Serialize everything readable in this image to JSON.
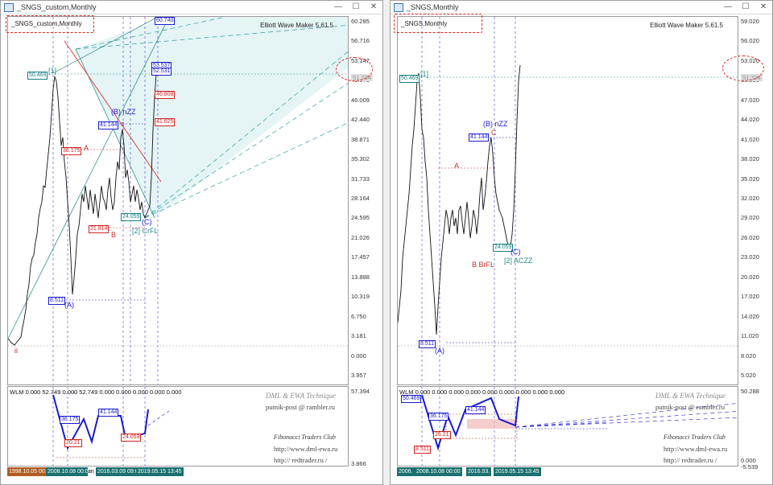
{
  "window_left": {
    "title": "_SNGS_custom,Monthly",
    "chart_label": "_SNGS_custom,Monthly",
    "indicator": "Elliott Wave Maker 5.61.5",
    "current_price": "51.734",
    "axis_ticks": [
      "60.285",
      "56.716",
      "53.147",
      "49.578",
      "46.009",
      "42.440",
      "38.871",
      "35.302",
      "31.733",
      "28.164",
      "24.595",
      "21.026",
      "17.457",
      "13.888",
      "10.319",
      "6.750",
      "3.181",
      "0.000",
      "3.957"
    ],
    "sub_axis_ticks": [
      "57.394",
      "3.866"
    ],
    "price_labels": {
      "p50469": "50.469",
      "p36175": "36.175",
      "p41144": "41.144",
      "p21814": "21.814",
      "p24059": "24.059",
      "p8511": "8.511",
      "p46808": "46.808",
      "p41625": "41.625",
      "p53": "53.537",
      "p52": "52.531",
      "p60740": "60.740"
    },
    "waves": {
      "w1": "[1]",
      "wA": "(A)",
      "wB": "(B) nZZ",
      "wC": "(C)",
      "w2": "[2] CrFL",
      "a": "A",
      "b": "B",
      "c": "c",
      "ii": "ii"
    },
    "sub_title": "WLM 0.000 52.749 0.000 52.749 0.000 0.000 0.000 0.000 0.000",
    "sub_labels": {
      "s36175": "36.175",
      "s41144": "41.144",
      "s20": "20.21",
      "s24059": "24.059"
    },
    "tech_title": "DML & EWA Technique",
    "tech_email": "putnik-post @ rambler.ru",
    "club": "Fibonacci   Traders   Club",
    "url1": "http://www.dml-ewa.ru",
    "url2": "http://  redtrader.ru  /",
    "dates": [
      "1998.10.05 00:00",
      "2008.10.08 00:00",
      "2016.03.09 09:00",
      "2019.05.15 13:45"
    ],
    "date_tail": "an"
  },
  "window_right": {
    "title": "_SNGS,Monthly",
    "chart_label": "_SNGS,Monthly",
    "indicator": "Elliott Wave Maker 5.61.5",
    "current_price": "51.734",
    "axis_ticks": [
      "59.020",
      "56.020",
      "53.020",
      "50.020",
      "47.020",
      "44.020",
      "41.020",
      "38.020",
      "35.020",
      "32.020",
      "29.020",
      "26.020",
      "23.020",
      "20.020",
      "17.020",
      "14.020",
      "11.020",
      "8.020",
      "5.020"
    ],
    "sub_axis_ticks": [
      "50.288",
      "0.000",
      "-5.539"
    ],
    "price_labels": {
      "p50469": "50.469",
      "p41144": "41.144",
      "p24059": "24.059",
      "p8511": "8.511"
    },
    "waves": {
      "w1": "[1]",
      "wA": "(A)",
      "wB": "(B) nZZ",
      "wC": "(C)",
      "w2": "[2] ACZZ",
      "a": "A",
      "b": "B BrFL",
      "c": "C"
    },
    "sub_title": "WLM 0.000 0.000 0.000 0.000 0.000 0.000 0.000 0.000 0.000",
    "sub_labels": {
      "s50469": "50.469",
      "s36": "36.175",
      "s41": "41.144",
      "s8511": "8.511",
      "s26": "26.21"
    },
    "tech_title": "DML & EWA Technique",
    "tech_email": "putnik-post @ rambler.ru",
    "club": "Fibonacci   Traders   Club",
    "url1": "http://www.dml-ewa.ru",
    "url2": "http://  redtrader.ru  /",
    "dates": [
      "2006.",
      "2008.10.08 00:00",
      "2016.03.",
      "2019.05.15 13:45"
    ]
  },
  "window_buttons": {
    "minimize": "—",
    "maximize": "☐",
    "close": "✕"
  },
  "colors": {
    "blue": "#1a1ad0",
    "red": "#d02020",
    "teal": "#178080",
    "fill": "#d8eef0"
  }
}
